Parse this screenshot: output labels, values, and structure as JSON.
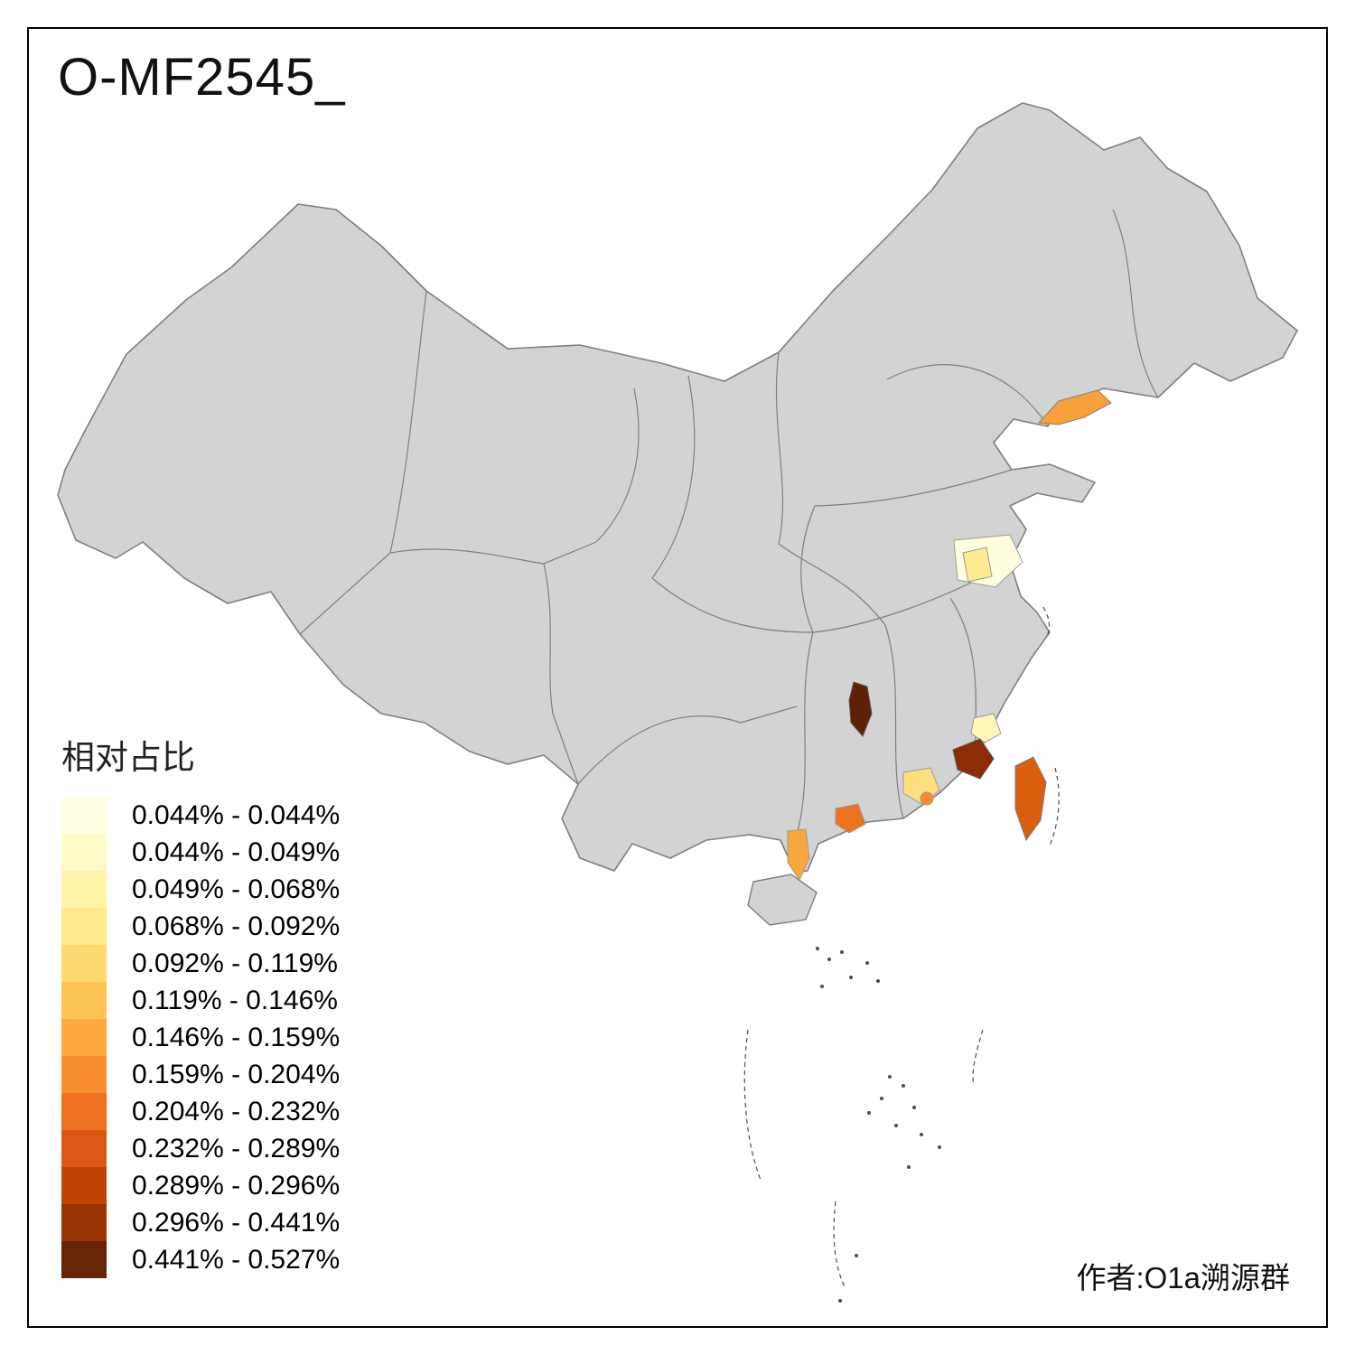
{
  "title": "O-MF2545_",
  "author": "作者:O1a溯源群",
  "legend": {
    "title": "相对占比",
    "bins": [
      {
        "label": "0.044% - 0.044%",
        "color": "#FFFFE5"
      },
      {
        "label": "0.044% - 0.049%",
        "color": "#FFFBC6"
      },
      {
        "label": "0.049% - 0.068%",
        "color": "#FEF5A9"
      },
      {
        "label": "0.068% - 0.092%",
        "color": "#FEE98D"
      },
      {
        "label": "0.092% - 0.119%",
        "color": "#FED96F"
      },
      {
        "label": "0.119% - 0.146%",
        "color": "#FEC354"
      },
      {
        "label": "0.146% - 0.159%",
        "color": "#FEA93F"
      },
      {
        "label": "0.159% - 0.204%",
        "color": "#F98E31"
      },
      {
        "label": "0.204% - 0.232%",
        "color": "#EE7121"
      },
      {
        "label": "0.232% - 0.289%",
        "color": "#DB5712"
      },
      {
        "label": "0.289% - 0.296%",
        "color": "#C04205"
      },
      {
        "label": "0.296% - 0.441%",
        "color": "#993404"
      },
      {
        "label": "0.441% - 0.527%",
        "color": "#662506"
      }
    ]
  },
  "map": {
    "land_color": "#D3D3D3",
    "border_color": "#7F7F7F",
    "island_mark_color": "#4D4D4D",
    "regions": [
      {
        "id": "liaoning-south",
        "bin": "0.146% - 0.159%",
        "color": "#F9A03A"
      },
      {
        "id": "jiangsu-coast-pale",
        "bin": "0.044% - 0.044%",
        "color": "#FFFDE0"
      },
      {
        "id": "jiangsu-inner-yellow",
        "bin": "0.068% - 0.092%",
        "color": "#FEEB93"
      },
      {
        "id": "hunan-east",
        "bin": "0.441% - 0.527%",
        "color": "#5E2105"
      },
      {
        "id": "fujian-south-coast",
        "bin": "0.296% - 0.441%",
        "color": "#8C2B04"
      },
      {
        "id": "fujian-coast-pale",
        "bin": "0.049% - 0.068%",
        "color": "#FFF6B8"
      },
      {
        "id": "taiwan",
        "bin": "0.232% - 0.289%",
        "color": "#D95F0E"
      },
      {
        "id": "guangdong-east-yellow",
        "bin": "0.092% - 0.119%",
        "color": "#FEDE7E"
      },
      {
        "id": "guangdong-central-orange",
        "bin": "0.159% - 0.204%",
        "color": "#F58B2C"
      },
      {
        "id": "guangdong-west-orange",
        "bin": "0.204% - 0.232%",
        "color": "#EE7121"
      },
      {
        "id": "leizhou-peninsula",
        "bin": "0.146% - 0.159%",
        "color": "#F6A83E"
      }
    ]
  }
}
